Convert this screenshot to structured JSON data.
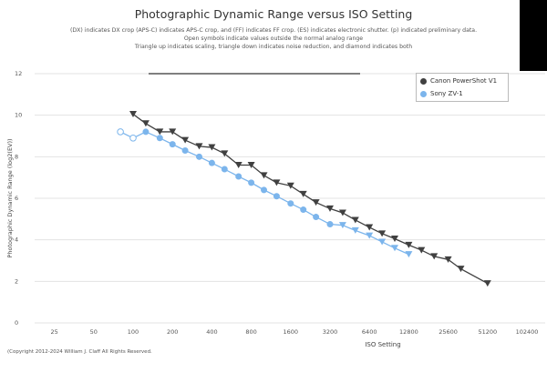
{
  "chart_data": {
    "type": "line",
    "title": "Photographic Dynamic Range versus ISO Setting",
    "subtitle": [
      "(DX) indicates DX crop (APS-C) indicates APS-C crop, and (FF) indicates FF crop. (ES) indicates electronic shutter. (p) indicated preliminary data.",
      "Open symbols indicate values outside the normal analog range",
      "Triangle up indicates scaling, triangle down indicates noise reduction, and diamond indicates both"
    ],
    "xlabel": "ISO Setting",
    "ylabel": "Photographic Dynamic Range (log2(EV))",
    "xscale": "log2",
    "xticks": [
      "25",
      "50",
      "100",
      "200",
      "400",
      "800",
      "1600",
      "3200",
      "6400",
      "12800",
      "25600",
      "51200",
      "102400"
    ],
    "yticks": [
      "0",
      "2",
      "4",
      "6",
      "8",
      "10",
      "12"
    ],
    "ylim": [
      0,
      12
    ],
    "grid": true,
    "legend": "top-right",
    "series": [
      {
        "name": "Canon PowerShot V1",
        "color": "#404040",
        "points": [
          [
            100,
            10.05,
            "down"
          ],
          [
            125,
            9.6,
            "down"
          ],
          [
            160,
            9.2,
            "down"
          ],
          [
            200,
            9.2,
            "down"
          ],
          [
            250,
            8.8,
            "down"
          ],
          [
            320,
            8.5,
            "down"
          ],
          [
            400,
            8.45,
            "down"
          ],
          [
            500,
            8.15,
            "down"
          ],
          [
            640,
            7.6,
            "down"
          ],
          [
            800,
            7.6,
            "down"
          ],
          [
            1000,
            7.1,
            "down"
          ],
          [
            1250,
            6.75,
            "down"
          ],
          [
            1600,
            6.6,
            "down"
          ],
          [
            2000,
            6.2,
            "down"
          ],
          [
            2500,
            5.8,
            "down"
          ],
          [
            3200,
            5.5,
            "down"
          ],
          [
            4000,
            5.3,
            "down"
          ],
          [
            5000,
            4.95,
            "down"
          ],
          [
            6400,
            4.6,
            "down"
          ],
          [
            8000,
            4.3,
            "down"
          ],
          [
            10000,
            4.05,
            "down"
          ],
          [
            12800,
            3.75,
            "down"
          ],
          [
            16000,
            3.5,
            "down"
          ],
          [
            20000,
            3.2,
            "down"
          ],
          [
            25600,
            3.05,
            "down"
          ],
          [
            32000,
            2.6,
            "down"
          ],
          [
            51200,
            1.9,
            "down"
          ]
        ]
      },
      {
        "name": "Sony ZV-1",
        "color": "#7cb5ec",
        "points": [
          [
            80,
            9.2,
            "open"
          ],
          [
            100,
            8.9,
            "open"
          ],
          [
            125,
            9.2,
            "circle"
          ],
          [
            160,
            8.9,
            "circle"
          ],
          [
            200,
            8.6,
            "circle"
          ],
          [
            250,
            8.3,
            "circle"
          ],
          [
            320,
            8.0,
            "circle"
          ],
          [
            400,
            7.7,
            "circle"
          ],
          [
            500,
            7.4,
            "circle"
          ],
          [
            640,
            7.05,
            "circle"
          ],
          [
            800,
            6.75,
            "circle"
          ],
          [
            1000,
            6.4,
            "circle"
          ],
          [
            1250,
            6.1,
            "circle"
          ],
          [
            1600,
            5.75,
            "circle"
          ],
          [
            2000,
            5.45,
            "circle"
          ],
          [
            2500,
            5.1,
            "circle"
          ],
          [
            3200,
            4.75,
            "circle"
          ],
          [
            4000,
            4.7,
            "down"
          ],
          [
            5000,
            4.45,
            "down"
          ],
          [
            6400,
            4.2,
            "down"
          ],
          [
            8000,
            3.9,
            "down"
          ],
          [
            10000,
            3.6,
            "down"
          ],
          [
            12800,
            3.3,
            "down"
          ]
        ]
      }
    ]
  },
  "copyright": "(Copyright 2012-2024 William J. Claff All Rights Reserved."
}
